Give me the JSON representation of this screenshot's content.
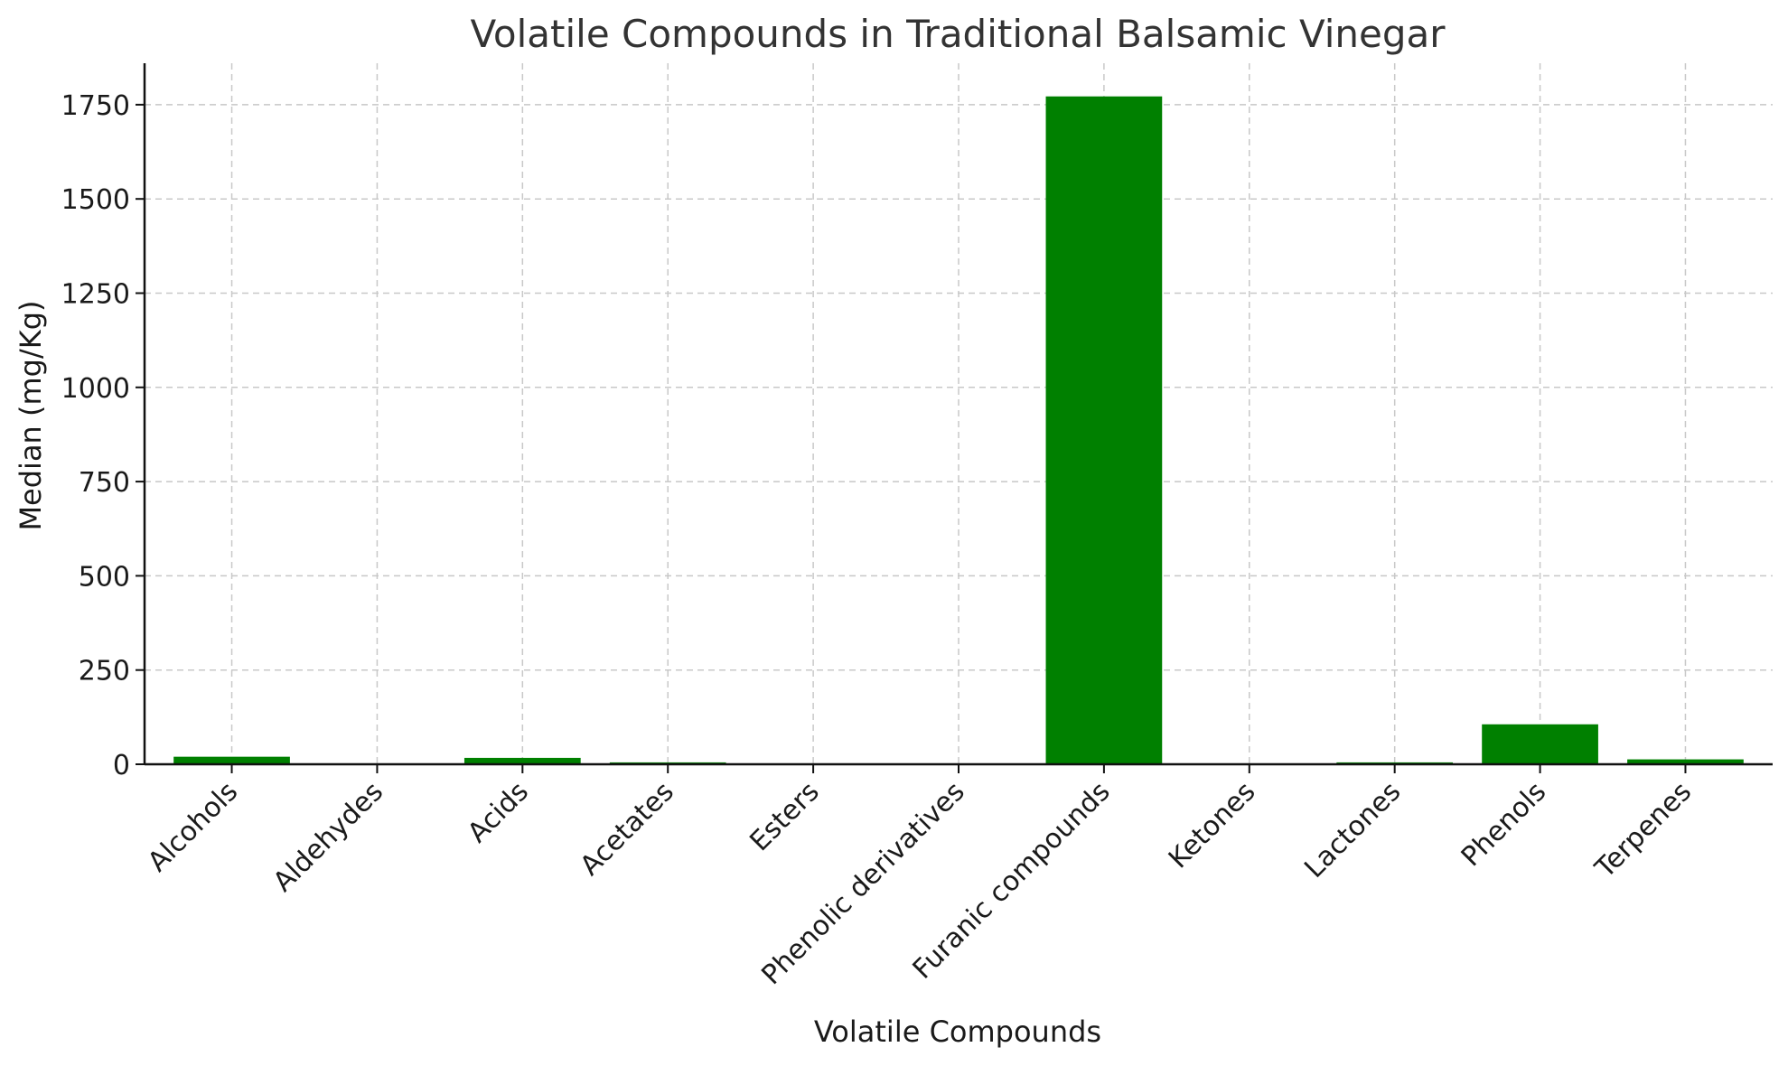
{
  "chart_data": {
    "type": "bar",
    "title": "Volatile Compounds in Traditional Balsamic Vinegar",
    "xlabel": "Volatile Compounds",
    "ylabel": "Median (mg/Kg)",
    "categories": [
      "Alcohols",
      "Aldehydes",
      "Acids",
      "Acetates",
      "Esters",
      "Phenolic derivatives",
      "Furanic compounds",
      "Ketones",
      "Lactones",
      "Phenols",
      "Terpenes"
    ],
    "values": [
      20,
      0.5,
      17,
      5,
      0.5,
      0.5,
      1772,
      0.5,
      5,
      106,
      13
    ],
    "ylim": [
      0,
      1860
    ],
    "yticks": [
      0,
      250,
      500,
      750,
      1000,
      1250,
      1500,
      1750
    ],
    "grid": true,
    "colors": {
      "bar": "#008000",
      "grid": "#c8c8c8",
      "axis": "#111111"
    }
  }
}
